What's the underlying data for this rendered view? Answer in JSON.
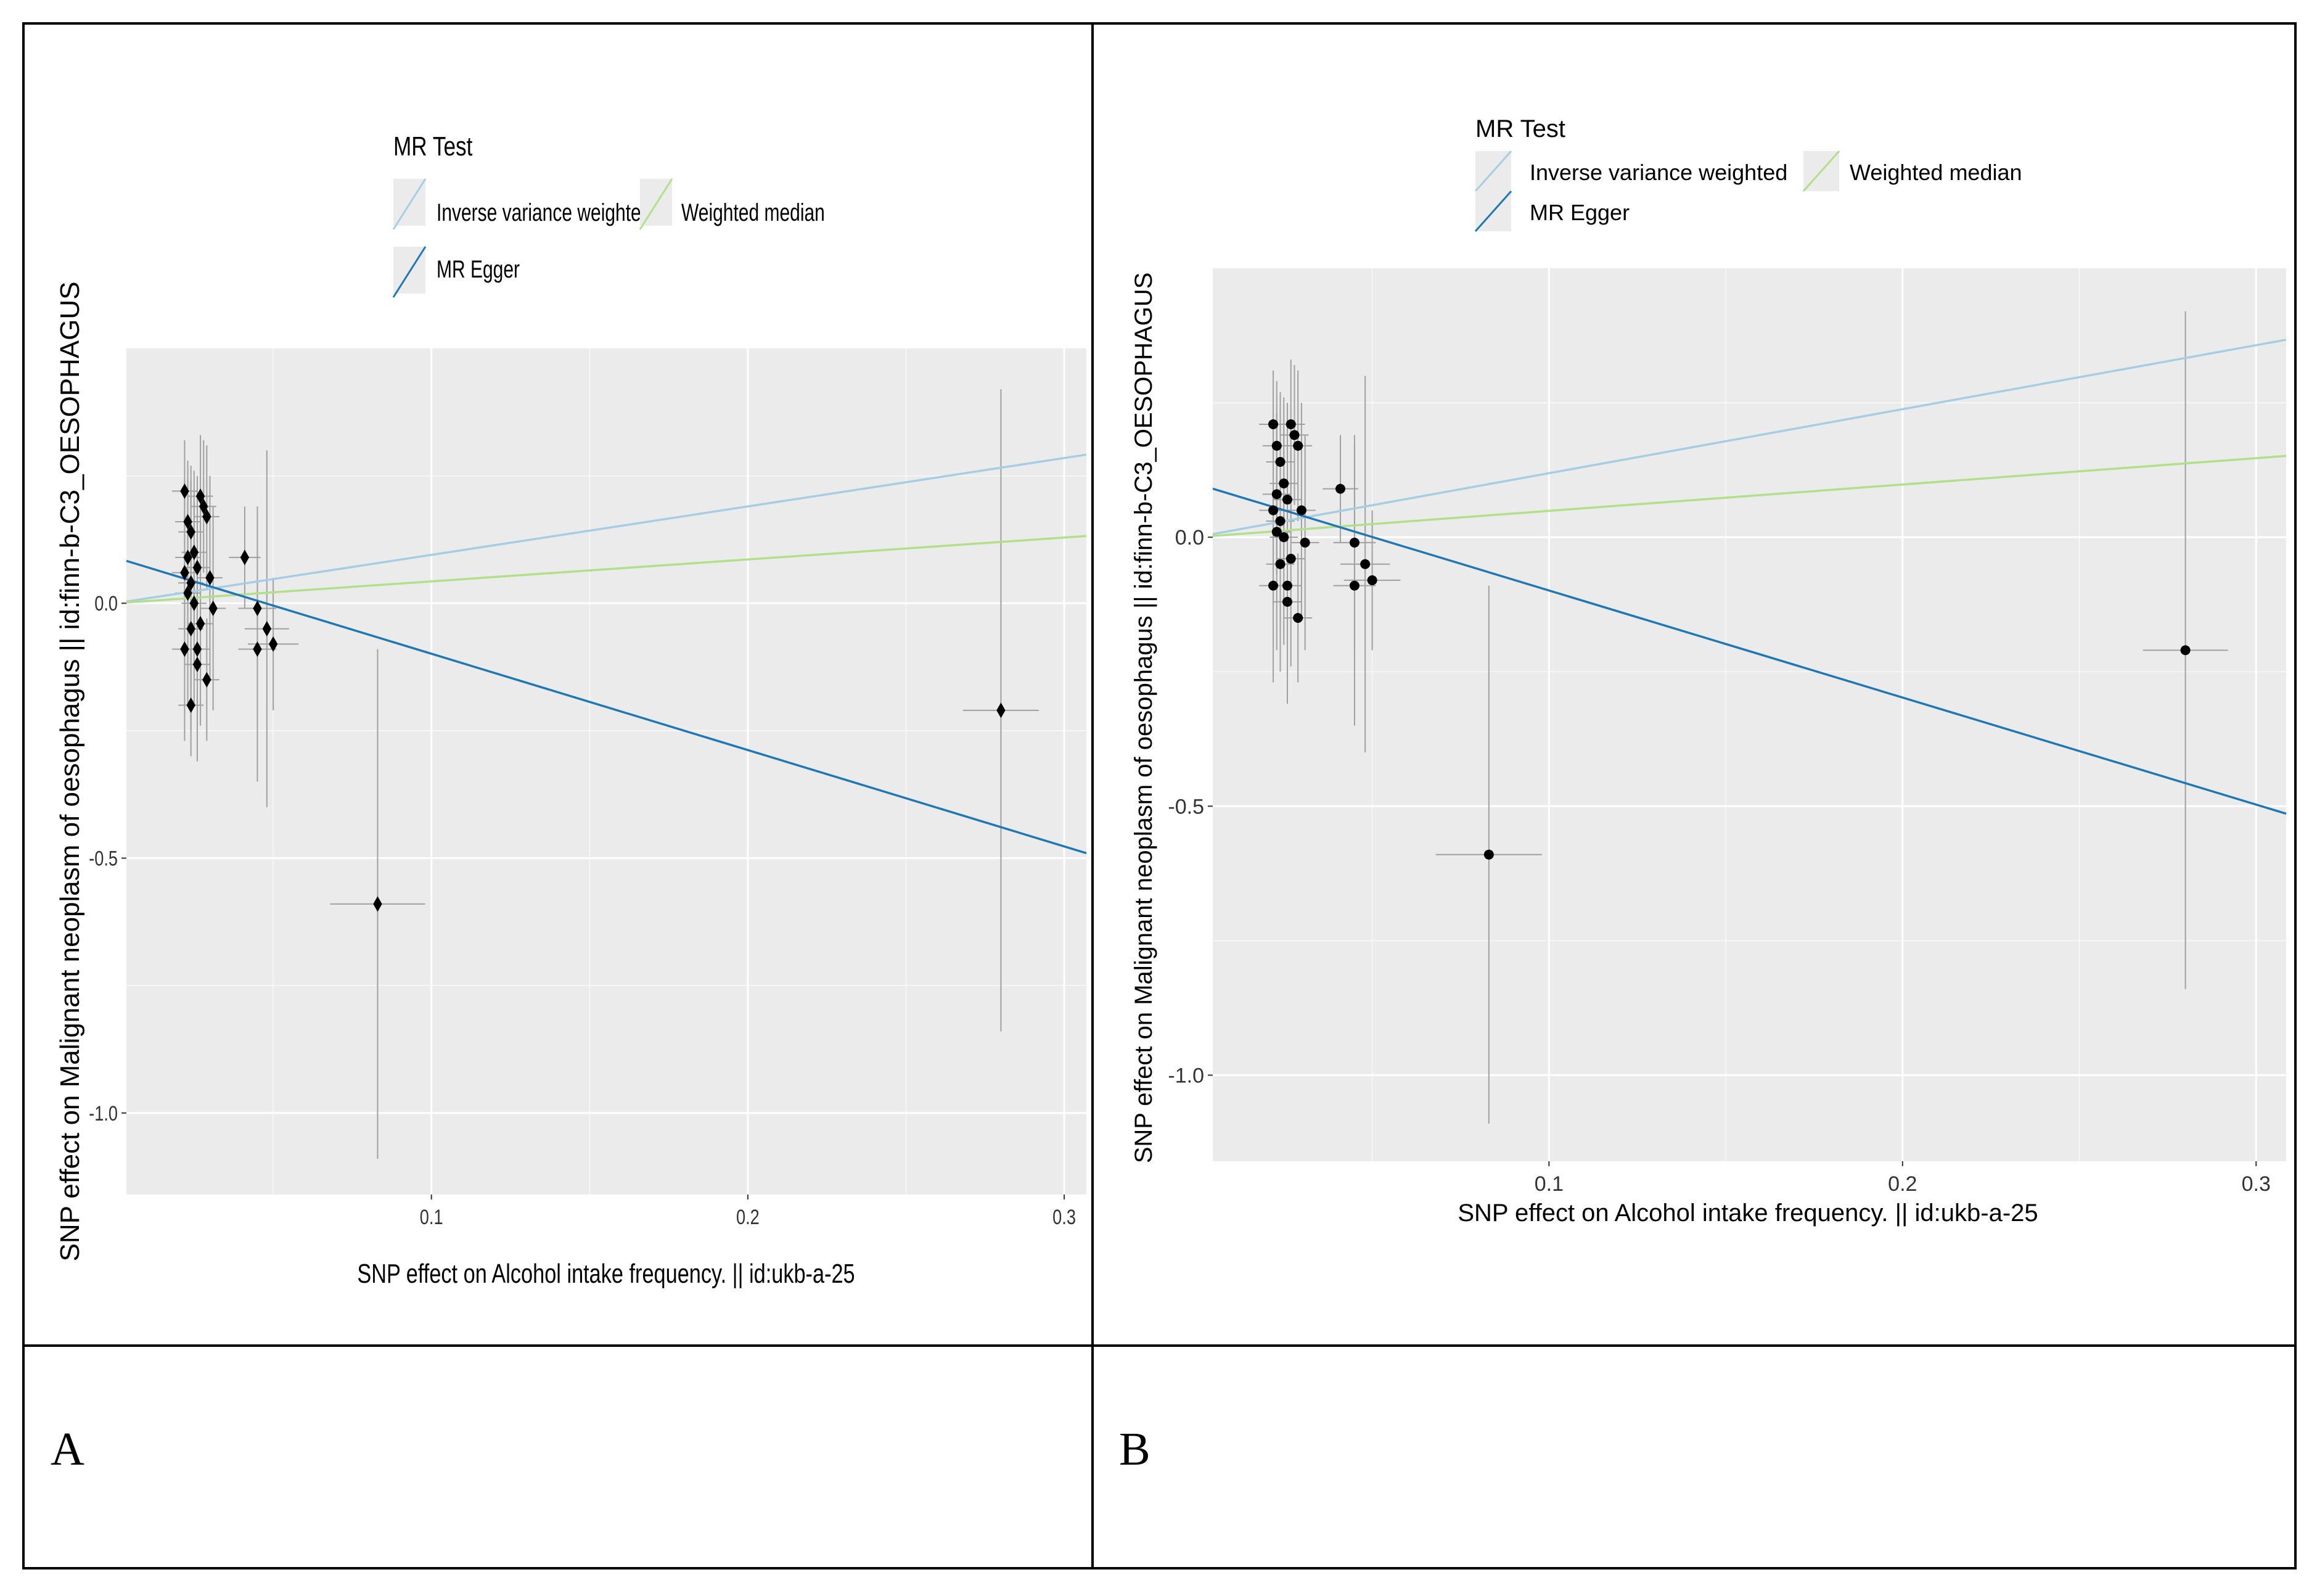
{
  "panels": [
    {
      "label": "A",
      "legend_title": "MR Test",
      "legend_items": [
        "Inverse variance weighted",
        "Weighted median",
        "MR Egger"
      ],
      "xlabel": "SNP effect on Alcohol intake frequency. || id:ukb-a-25",
      "ylabel": "SNP effect on Malignant neoplasm of oesophagus || id:finn-b-C3_OESOPHAGUS"
    },
    {
      "label": "B",
      "legend_title": "MR Test",
      "legend_items": [
        "Inverse variance weighted",
        "Weighted median",
        "MR Egger"
      ],
      "xlabel": "SNP effect on Alcohol intake frequency. || id:ukb-a-25",
      "ylabel": "SNP effect on Malignant neoplasm of oesophagus || id:finn-b-C3_OESOPHAGUS"
    }
  ],
  "colors": {
    "ivw": "#a6cee3",
    "weighted_median": "#b2df8a",
    "mr_egger": "#1f78b4",
    "panel_bg": "#ebebeb",
    "grid": "#ffffff",
    "point": "#000000",
    "errorbar": "#a0a0a0"
  },
  "chart_data": [
    {
      "type": "scatter",
      "panel": "A",
      "title": "",
      "xlabel": "SNP effect on Alcohol intake frequency. || id:ukb-a-25",
      "ylabel": "SNP effect on Malignant neoplasm of oesophagus || id:finn-b-C3_OESOPHAGUS",
      "xlim": [
        0.0036,
        0.307
      ],
      "ylim": [
        -1.16,
        0.5
      ],
      "xticks": [
        0.1,
        0.2,
        0.3
      ],
      "xtick_labels": [
        "0.1",
        "0.2",
        "0.3"
      ],
      "yticks": [
        0.0,
        -0.5,
        -1.0
      ],
      "ytick_labels": [
        "0.0",
        "-0.5",
        "-1.0"
      ],
      "legend_title": "MR Test",
      "lines": [
        {
          "name": "Inverse variance weighted",
          "slope": 0.95,
          "intercept": 0
        },
        {
          "name": "Weighted median",
          "slope": 0.43,
          "intercept": 0
        },
        {
          "name": "MR Egger",
          "slope": -1.89,
          "intercept": 0.09
        }
      ],
      "points": [
        {
          "x": 0.022,
          "y": 0.22,
          "x_se": 0.004,
          "y_se": 0.1
        },
        {
          "x": 0.023,
          "y": 0.16,
          "x_se": 0.004,
          "y_se": 0.12
        },
        {
          "x": 0.024,
          "y": 0.14,
          "x_se": 0.004,
          "y_se": 0.13
        },
        {
          "x": 0.025,
          "y": 0.1,
          "x_se": 0.004,
          "y_se": 0.16
        },
        {
          "x": 0.023,
          "y": 0.09,
          "x_se": 0.004,
          "y_se": 0.15
        },
        {
          "x": 0.022,
          "y": 0.06,
          "x_se": 0.004,
          "y_se": 0.18
        },
        {
          "x": 0.024,
          "y": 0.04,
          "x_se": 0.004,
          "y_se": 0.2
        },
        {
          "x": 0.023,
          "y": 0.02,
          "x_se": 0.004,
          "y_se": 0.22
        },
        {
          "x": 0.025,
          "y": 0.0,
          "x_se": 0.004,
          "y_se": 0.2
        },
        {
          "x": 0.024,
          "y": -0.05,
          "x_se": 0.004,
          "y_se": 0.2
        },
        {
          "x": 0.022,
          "y": -0.09,
          "x_se": 0.004,
          "y_se": 0.18
        },
        {
          "x": 0.024,
          "y": -0.2,
          "x_se": 0.004,
          "y_se": 0.1
        },
        {
          "x": 0.027,
          "y": 0.21,
          "x_se": 0.004,
          "y_se": 0.12
        },
        {
          "x": 0.028,
          "y": 0.19,
          "x_se": 0.004,
          "y_se": 0.13
        },
        {
          "x": 0.029,
          "y": 0.17,
          "x_se": 0.004,
          "y_se": 0.14
        },
        {
          "x": 0.026,
          "y": 0.07,
          "x_se": 0.004,
          "y_se": 0.18
        },
        {
          "x": 0.03,
          "y": 0.05,
          "x_se": 0.004,
          "y_se": 0.2
        },
        {
          "x": 0.027,
          "y": -0.04,
          "x_se": 0.004,
          "y_se": 0.2
        },
        {
          "x": 0.026,
          "y": -0.09,
          "x_se": 0.004,
          "y_se": 0.22
        },
        {
          "x": 0.026,
          "y": -0.12,
          "x_se": 0.004,
          "y_se": 0.18
        },
        {
          "x": 0.031,
          "y": -0.01,
          "x_se": 0.004,
          "y_se": 0.2
        },
        {
          "x": 0.029,
          "y": -0.15,
          "x_se": 0.004,
          "y_se": 0.12
        },
        {
          "x": 0.041,
          "y": 0.09,
          "x_se": 0.005,
          "y_se": 0.1
        },
        {
          "x": 0.045,
          "y": -0.01,
          "x_se": 0.006,
          "y_se": 0.2
        },
        {
          "x": 0.045,
          "y": -0.09,
          "x_se": 0.006,
          "y_se": 0.26
        },
        {
          "x": 0.048,
          "y": -0.05,
          "x_se": 0.007,
          "y_se": 0.35
        },
        {
          "x": 0.05,
          "y": -0.08,
          "x_se": 0.008,
          "y_se": 0.13
        },
        {
          "x": 0.083,
          "y": -0.59,
          "x_se": 0.015,
          "y_se": 0.5
        },
        {
          "x": 0.28,
          "y": -0.21,
          "x_se": 0.012,
          "y_se": 0.63
        }
      ]
    },
    {
      "type": "scatter",
      "panel": "B",
      "title": "",
      "xlabel": "SNP effect on Alcohol intake frequency. || id:ukb-a-25",
      "ylabel": "SNP effect on Malignant neoplasm of oesophagus || id:finn-b-C3_OESOPHAGUS",
      "xlim": [
        0.0049,
        0.3085
      ],
      "ylim": [
        -1.16,
        0.5
      ],
      "xticks": [
        0.1,
        0.2,
        0.3
      ],
      "xtick_labels": [
        "0.1",
        "0.2",
        "0.3"
      ],
      "yticks": [
        0.0,
        -0.5,
        -1.0
      ],
      "ytick_labels": [
        "0.0",
        "-0.5",
        "-1.0"
      ],
      "legend_title": "MR Test",
      "lines": [
        {
          "name": "Inverse variance weighted",
          "slope": 1.19,
          "intercept": 0
        },
        {
          "name": "Weighted median",
          "slope": 0.49,
          "intercept": 0
        },
        {
          "name": "MR Egger",
          "slope": -1.99,
          "intercept": 0.1
        }
      ],
      "points": [
        {
          "x": 0.022,
          "y": 0.21,
          "x_se": 0.004,
          "y_se": 0.1
        },
        {
          "x": 0.023,
          "y": 0.17,
          "x_se": 0.004,
          "y_se": 0.12
        },
        {
          "x": 0.024,
          "y": 0.14,
          "x_se": 0.004,
          "y_se": 0.13
        },
        {
          "x": 0.025,
          "y": 0.1,
          "x_se": 0.004,
          "y_se": 0.16
        },
        {
          "x": 0.023,
          "y": 0.08,
          "x_se": 0.004,
          "y_se": 0.15
        },
        {
          "x": 0.022,
          "y": 0.05,
          "x_se": 0.004,
          "y_se": 0.18
        },
        {
          "x": 0.024,
          "y": 0.03,
          "x_se": 0.004,
          "y_se": 0.2
        },
        {
          "x": 0.023,
          "y": 0.01,
          "x_se": 0.004,
          "y_se": 0.22
        },
        {
          "x": 0.025,
          "y": 0.0,
          "x_se": 0.004,
          "y_se": 0.2
        },
        {
          "x": 0.024,
          "y": -0.05,
          "x_se": 0.004,
          "y_se": 0.2
        },
        {
          "x": 0.022,
          "y": -0.09,
          "x_se": 0.004,
          "y_se": 0.18
        },
        {
          "x": 0.027,
          "y": 0.21,
          "x_se": 0.004,
          "y_se": 0.12
        },
        {
          "x": 0.028,
          "y": 0.19,
          "x_se": 0.004,
          "y_se": 0.13
        },
        {
          "x": 0.029,
          "y": 0.17,
          "x_se": 0.004,
          "y_se": 0.14
        },
        {
          "x": 0.026,
          "y": 0.07,
          "x_se": 0.004,
          "y_se": 0.18
        },
        {
          "x": 0.03,
          "y": 0.05,
          "x_se": 0.004,
          "y_se": 0.2
        },
        {
          "x": 0.027,
          "y": -0.04,
          "x_se": 0.004,
          "y_se": 0.2
        },
        {
          "x": 0.026,
          "y": -0.09,
          "x_se": 0.004,
          "y_se": 0.22
        },
        {
          "x": 0.026,
          "y": -0.12,
          "x_se": 0.004,
          "y_se": 0.18
        },
        {
          "x": 0.031,
          "y": -0.01,
          "x_se": 0.004,
          "y_se": 0.2
        },
        {
          "x": 0.029,
          "y": -0.15,
          "x_se": 0.004,
          "y_se": 0.12
        },
        {
          "x": 0.041,
          "y": 0.09,
          "x_se": 0.005,
          "y_se": 0.1
        },
        {
          "x": 0.045,
          "y": -0.01,
          "x_se": 0.006,
          "y_se": 0.2
        },
        {
          "x": 0.045,
          "y": -0.09,
          "x_se": 0.006,
          "y_se": 0.26
        },
        {
          "x": 0.048,
          "y": -0.05,
          "x_se": 0.007,
          "y_se": 0.35
        },
        {
          "x": 0.05,
          "y": -0.08,
          "x_se": 0.008,
          "y_se": 0.13
        },
        {
          "x": 0.083,
          "y": -0.59,
          "x_se": 0.015,
          "y_se": 0.5
        },
        {
          "x": 0.28,
          "y": -0.21,
          "x_se": 0.012,
          "y_se": 0.63
        }
      ]
    }
  ]
}
